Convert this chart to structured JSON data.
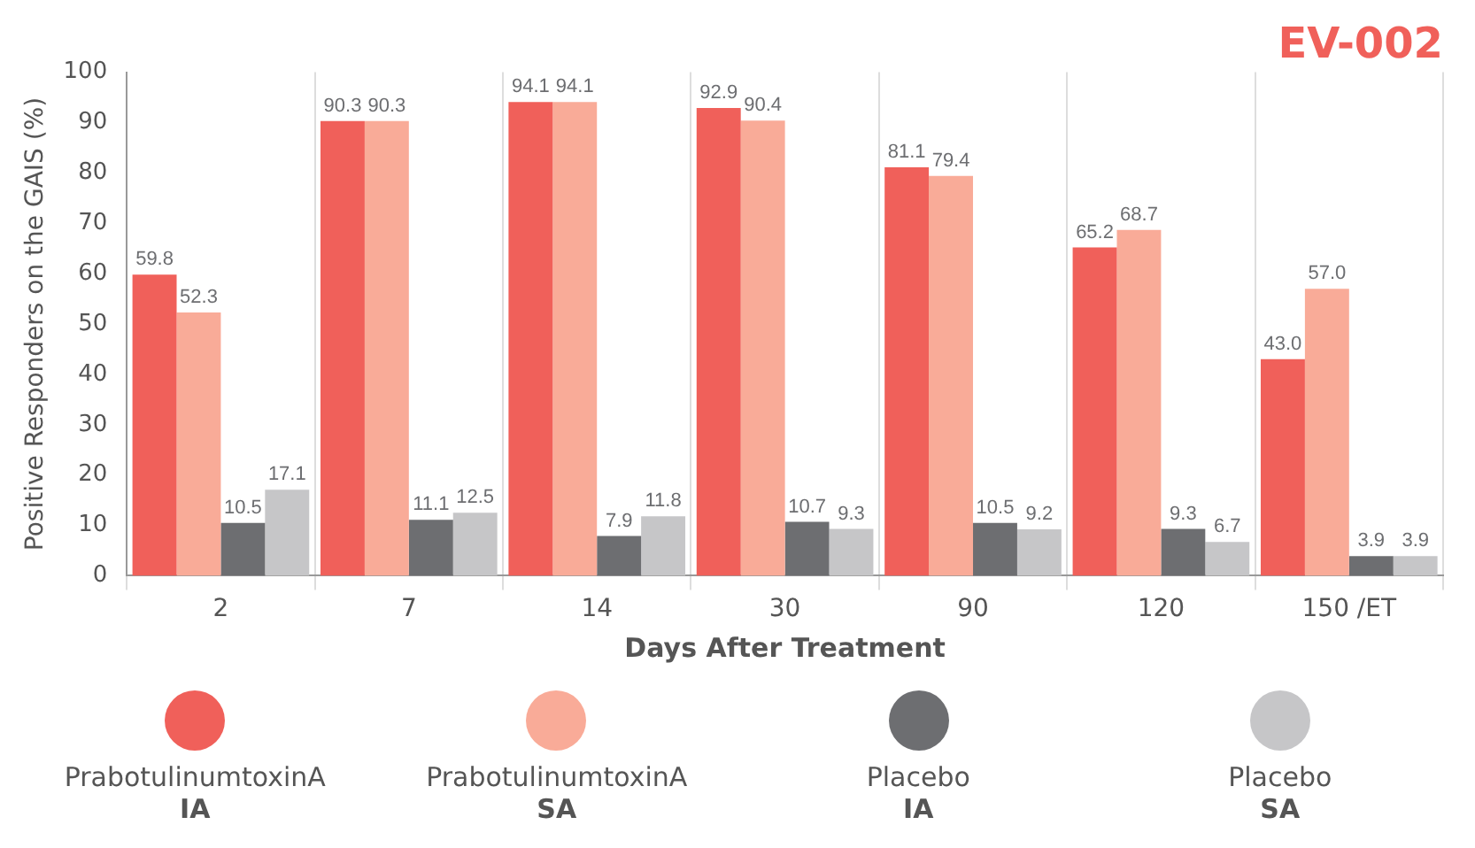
{
  "chart_data": {
    "type": "bar",
    "title": "EV-002",
    "xlabel": "Days After Treatment",
    "ylabel": "Positive Responders on the GAIS (%)",
    "categories": [
      "2",
      "7",
      "14",
      "30",
      "90",
      "120",
      "150 /ET"
    ],
    "series": [
      {
        "name": "PrabotulinumtoxinA IA",
        "color": "#f0605a",
        "values": [
          59.8,
          90.3,
          94.1,
          92.9,
          81.1,
          65.2,
          43.0
        ],
        "value_labels": [
          "59.8",
          "90.3",
          "94.1",
          "92.9",
          "81.1",
          "65.2",
          "43.0"
        ]
      },
      {
        "name": "PrabotulinumtoxinA SA",
        "color": "#f9ab98",
        "values": [
          52.3,
          90.3,
          94.1,
          90.4,
          79.4,
          68.7,
          57.0
        ],
        "value_labels": [
          "52.3",
          "90.3",
          "94.1",
          "90.4",
          "79.4",
          "68.7",
          "57.0"
        ]
      },
      {
        "name": "Placebo IA",
        "color": "#6d6e71",
        "values": [
          10.5,
          11.1,
          7.9,
          10.7,
          10.5,
          9.3,
          3.9
        ],
        "value_labels": [
          "10.5",
          "11.1",
          "7.9",
          "10.7",
          "10.5",
          "9.3",
          "3.9"
        ]
      },
      {
        "name": "Placebo SA",
        "color": "#c6c6c8",
        "values": [
          17.1,
          12.5,
          11.8,
          9.3,
          9.2,
          6.7,
          3.9
        ],
        "value_labels": [
          "17.1",
          "12.5",
          "11.8",
          "9.3",
          "9.2",
          "6.7",
          "3.9"
        ]
      }
    ],
    "ylim": [
      0,
      100
    ],
    "yticks": [
      0,
      10,
      20,
      30,
      40,
      50,
      60,
      70,
      80,
      90,
      100
    ],
    "grid": "x",
    "legend": "bottom"
  }
}
